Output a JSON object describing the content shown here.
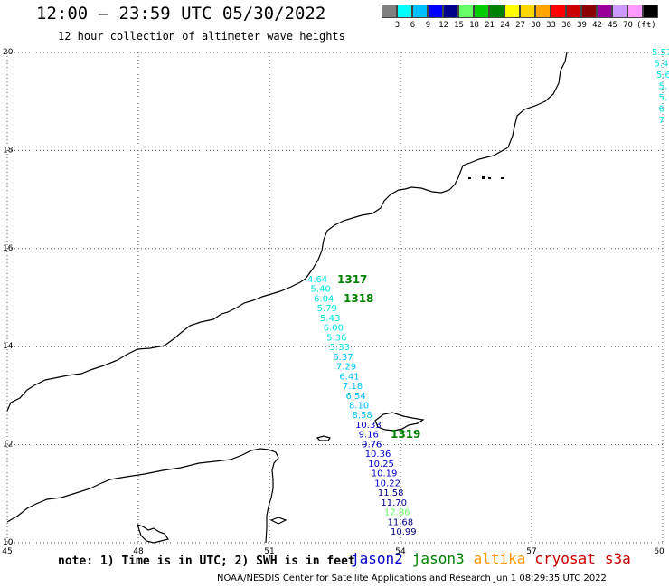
{
  "header": {
    "title": "12:00 — 23:59 UTC 05/30/2022",
    "subtitle": "12 hour collection of altimeter wave heights"
  },
  "color_scale": {
    "unit": "(ft)",
    "steps": [
      {
        "label": "",
        "color": "#7f7f7f"
      },
      {
        "label": "3",
        "color": "#00ffff"
      },
      {
        "label": "6",
        "color": "#00bfff"
      },
      {
        "label": "9",
        "color": "#0000ff"
      },
      {
        "label": "12",
        "color": "#00008b"
      },
      {
        "label": "15",
        "color": "#66ff66"
      },
      {
        "label": "18",
        "color": "#00cc00"
      },
      {
        "label": "21",
        "color": "#008000"
      },
      {
        "label": "24",
        "color": "#ffff00"
      },
      {
        "label": "27",
        "color": "#ffd700"
      },
      {
        "label": "30",
        "color": "#ffa500"
      },
      {
        "label": "33",
        "color": "#ff0000"
      },
      {
        "label": "36",
        "color": "#cc0000"
      },
      {
        "label": "39",
        "color": "#8b0000"
      },
      {
        "label": "42",
        "color": "#990099"
      },
      {
        "label": "45",
        "color": "#cc99ff"
      },
      {
        "label": "70",
        "color": "#ff99ff"
      },
      {
        "label": "",
        "color": "#000000"
      }
    ]
  },
  "map": {
    "lon_labels": [
      "45",
      "48",
      "51",
      "54",
      "57",
      "60"
    ],
    "lat_labels": [
      "20",
      "18",
      "16",
      "14",
      "12",
      "10"
    ],
    "pass_labels": [
      {
        "text": "1317",
        "color": "#008000"
      },
      {
        "text": "1318",
        "color": "#008000"
      },
      {
        "text": "1319",
        "color": "#008000"
      }
    ],
    "track_values": [
      {
        "text": "4.64",
        "color": "#00e5e5"
      },
      {
        "text": "5.40",
        "color": "#00e5e5"
      },
      {
        "text": "6.04",
        "color": "#00e5e5"
      },
      {
        "text": "5.79",
        "color": "#00e5e5"
      },
      {
        "text": "5.43",
        "color": "#00e5e5"
      },
      {
        "text": "6.00",
        "color": "#00e5e5"
      },
      {
        "text": "5.36",
        "color": "#00e5e5"
      },
      {
        "text": "5.33",
        "color": "#00e5e5"
      },
      {
        "text": "6.37",
        "color": "#00bfff"
      },
      {
        "text": "7.29",
        "color": "#00bfff"
      },
      {
        "text": "6.41",
        "color": "#00bfff"
      },
      {
        "text": "7.18",
        "color": "#00bfff"
      },
      {
        "text": "6.54",
        "color": "#00bfff"
      },
      {
        "text": "8.10",
        "color": "#00bfff"
      },
      {
        "text": "8.58",
        "color": "#00bfff"
      },
      {
        "text": "10.33",
        "color": "#0000cd"
      },
      {
        "text": "9.16",
        "color": "#0000cd"
      },
      {
        "text": "9.76",
        "color": "#0000cd"
      },
      {
        "text": "10.36",
        "color": "#0000cd"
      },
      {
        "text": "10.25",
        "color": "#0000cd"
      },
      {
        "text": "10.19",
        "color": "#0000cd"
      },
      {
        "text": "10.22",
        "color": "#0000cd"
      },
      {
        "text": "11.58",
        "color": "#00008b"
      },
      {
        "text": "11.70",
        "color": "#00008b"
      },
      {
        "text": "12.86",
        "color": "#66ff66"
      },
      {
        "text": "11.68",
        "color": "#00008b"
      },
      {
        "text": "10.99",
        "color": "#00008b"
      }
    ],
    "edge_values": [
      {
        "text": "5.57",
        "color": "#00e5e5"
      },
      {
        "text": "5.4",
        "color": "#00e5e5"
      },
      {
        "text": "5.6",
        "color": "#00e5e5"
      },
      {
        "text": "5.",
        "color": "#00e5e5"
      },
      {
        "text": "5.",
        "color": "#00e5e5"
      },
      {
        "text": "6",
        "color": "#00e5e5"
      },
      {
        "text": "7",
        "color": "#00e5e5"
      }
    ]
  },
  "note": "note: 1) Time is in UTC; 2) SWH is in feet",
  "legend": [
    {
      "text": "jason2",
      "color": "#0000cc"
    },
    {
      "text": "jason3",
      "color": "#008000"
    },
    {
      "text": "altika",
      "color": "#ff9900"
    },
    {
      "text": "cryosat",
      "color": "#cc0000"
    },
    {
      "text": "s3a",
      "color": "#cc0000"
    }
  ],
  "footer": "NOAA/NESDIS Center for Satellite Applications and Research    Jun  1 08:29:35 UTC 2022"
}
